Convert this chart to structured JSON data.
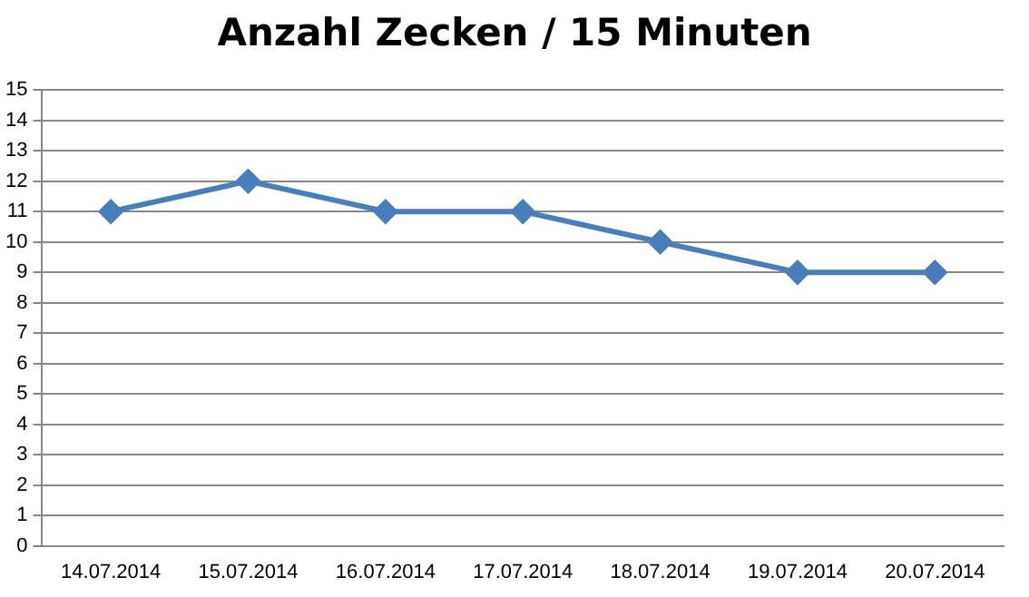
{
  "chart_data": {
    "type": "line",
    "title": "Anzahl Zecken / 15 Minuten",
    "categories": [
      "14.07.2014",
      "15.07.2014",
      "16.07.2014",
      "17.07.2014",
      "18.07.2014",
      "19.07.2014",
      "20.07.2014"
    ],
    "series": [
      {
        "color": "#4a7ebb",
        "values": [
          11,
          12,
          11,
          11,
          10,
          9,
          9
        ]
      }
    ],
    "ylim": [
      0,
      15
    ],
    "yticks": [
      0,
      1,
      2,
      3,
      4,
      5,
      6,
      7,
      8,
      9,
      10,
      11,
      12,
      13,
      14,
      15
    ],
    "grid": "y",
    "legend": false,
    "marker": "diamond",
    "line_style": "solid"
  }
}
